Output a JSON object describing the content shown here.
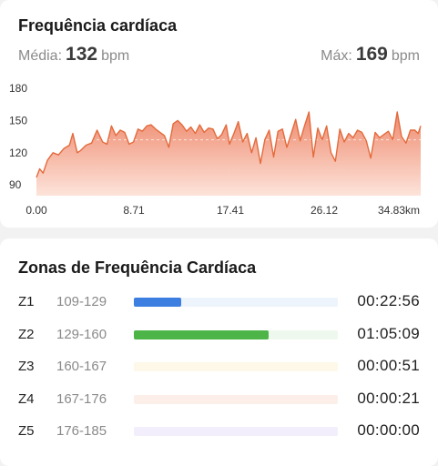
{
  "heart_rate": {
    "title": "Frequência cardíaca",
    "avg_label": "Média:",
    "avg_value": "132",
    "avg_unit": "bpm",
    "max_label": "Máx:",
    "max_value": "169",
    "max_unit": "bpm"
  },
  "chart_data": {
    "type": "area",
    "ylim": [
      80,
      180
    ],
    "yticks": [
      "180",
      "150",
      "120",
      "90"
    ],
    "xlim": [
      0,
      34.83
    ],
    "xticks": [
      "0.00",
      "8.71",
      "17.41",
      "26.12",
      "34.83km"
    ],
    "reference_line": 132,
    "line_color": "#e46a3c",
    "fill_top_color": "#ee8a6d",
    "fill_bottom_color": "#fde3da",
    "x": [
      0,
      0.3,
      0.6,
      1,
      1.5,
      2,
      2.5,
      3,
      3.3,
      3.7,
      4,
      4.5,
      5,
      5.5,
      6,
      6.4,
      6.8,
      7.2,
      7.6,
      8,
      8.4,
      8.8,
      9.2,
      9.6,
      10,
      10.4,
      10.8,
      11.2,
      11.6,
      12,
      12.4,
      12.8,
      13.2,
      13.6,
      14,
      14.4,
      14.8,
      15.2,
      15.6,
      16,
      16.4,
      16.8,
      17.2,
      17.5,
      17.9,
      18.3,
      18.7,
      19.1,
      19.5,
      19.9,
      20.3,
      20.7,
      21.1,
      21.5,
      21.9,
      22.3,
      22.7,
      23.1,
      23.5,
      23.9,
      24.3,
      24.7,
      25.1,
      25.5,
      25.9,
      26.3,
      26.7,
      27.1,
      27.5,
      27.9,
      28.3,
      28.7,
      29.1,
      29.5,
      29.9,
      30.3,
      30.7,
      31.1,
      31.5,
      31.9,
      32.3,
      32.7,
      33.1,
      33.5,
      33.9,
      34.3,
      34.6,
      34.83
    ],
    "y": [
      97,
      105,
      101,
      113,
      120,
      118,
      124,
      127,
      138,
      120,
      122,
      127,
      129,
      141,
      130,
      128,
      145,
      136,
      141,
      139,
      128,
      130,
      142,
      140,
      145,
      146,
      142,
      139,
      136,
      125,
      147,
      150,
      146,
      140,
      144,
      138,
      146,
      139,
      143,
      142,
      133,
      137,
      146,
      128,
      138,
      149,
      130,
      138,
      120,
      134,
      110,
      132,
      141,
      116,
      140,
      142,
      125,
      138,
      151,
      131,
      145,
      158,
      116,
      143,
      132,
      145,
      120,
      112,
      142,
      130,
      138,
      134,
      141,
      139,
      131,
      115,
      139,
      134,
      137,
      140,
      132,
      158,
      135,
      129,
      141,
      141,
      138,
      145
    ]
  },
  "zones": {
    "title": "Zonas de Frequência Cardíaca",
    "rows": [
      {
        "zone": "Z1",
        "range": "109-129",
        "time": "00:22:56",
        "fill": 0.23,
        "color": "#3d7fe0",
        "track": "#eef4fc"
      },
      {
        "zone": "Z2",
        "range": "129-160",
        "time": "01:05:09",
        "fill": 0.66,
        "color": "#4db548",
        "track": "#eef8ee"
      },
      {
        "zone": "Z3",
        "range": "160-167",
        "time": "00:00:51",
        "fill": 0.0,
        "color": "#f2c94c",
        "track": "#fdf8e8"
      },
      {
        "zone": "Z4",
        "range": "167-176",
        "time": "00:00:21",
        "fill": 0.0,
        "color": "#f29a6a",
        "track": "#fcefe9"
      },
      {
        "zone": "Z5",
        "range": "176-185",
        "time": "00:00:00",
        "fill": 0.0,
        "color": "#a57de0",
        "track": "#f3eefb"
      }
    ]
  }
}
